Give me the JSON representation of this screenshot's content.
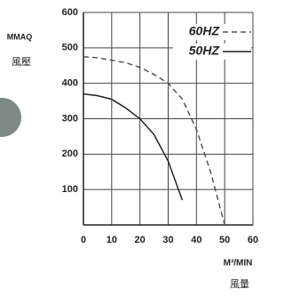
{
  "chart_data": {
    "type": "line",
    "ylabel": [
      "MMAQ",
      "風壓"
    ],
    "xlabel": [
      "M³/MIN",
      "風量"
    ],
    "x": [
      0,
      5,
      10,
      15,
      20,
      25,
      30,
      35,
      40,
      45,
      50
    ],
    "series": [
      {
        "name": "60HZ",
        "color": "#555555",
        "dash": true,
        "values": [
          475,
          472,
          465,
          458,
          445,
          425,
          400,
          355,
          270,
          150,
          0
        ]
      },
      {
        "name": "50HZ",
        "color": "#222222",
        "dash": false,
        "values": [
          370,
          365,
          355,
          330,
          300,
          255,
          180,
          70,
          null,
          null,
          null
        ]
      }
    ],
    "xlim": [
      0,
      60
    ],
    "xticks": [
      0,
      10,
      20,
      30,
      40,
      50,
      60
    ],
    "ylim": [
      0,
      600
    ],
    "yticks": [
      100,
      200,
      300,
      400,
      500,
      600
    ],
    "grid": true,
    "legend": "top-right"
  }
}
